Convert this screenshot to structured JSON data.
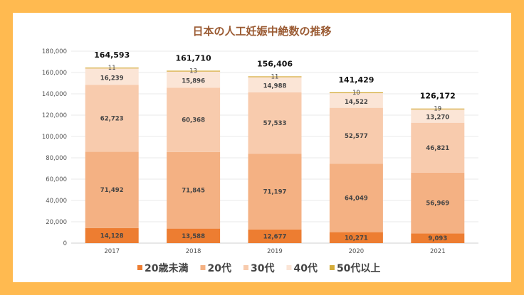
{
  "chart_data": {
    "type": "bar",
    "stacked": true,
    "title": "日本の人工妊娠中絶数の推移",
    "xlabel": "",
    "ylabel": "",
    "categories": [
      "2017",
      "2018",
      "2019",
      "2020",
      "2021"
    ],
    "ylim": [
      0,
      180000
    ],
    "yticks": [
      0,
      20000,
      40000,
      60000,
      80000,
      100000,
      120000,
      140000,
      160000,
      180000
    ],
    "ytick_labels": [
      "0",
      "20,000",
      "40,000",
      "60,000",
      "80,000",
      "100,000",
      "120,000",
      "140,000",
      "160,000",
      "180,000"
    ],
    "grid": true,
    "legend_position": "bottom",
    "series": [
      {
        "name": "20歳未満",
        "color": "#ED7D31",
        "values": [
          14128,
          13588,
          12677,
          10271,
          9093
        ],
        "labels": [
          "14,128",
          "13,588",
          "12,677",
          "10,271",
          "9,093"
        ]
      },
      {
        "name": "20代",
        "color": "#F4B183",
        "values": [
          71492,
          71845,
          71197,
          64049,
          56969
        ],
        "labels": [
          "71,492",
          "71,845",
          "71,197",
          "64,049",
          "56,969"
        ]
      },
      {
        "name": "30代",
        "color": "#F8CBAD",
        "values": [
          62723,
          60368,
          57533,
          52577,
          46821
        ],
        "labels": [
          "62,723",
          "60,368",
          "57,533",
          "52,577",
          "46,821"
        ]
      },
      {
        "name": "40代",
        "color": "#FBE5D6",
        "values": [
          16239,
          15896,
          14988,
          14522,
          13270
        ],
        "labels": [
          "16,239",
          "15,896",
          "14,988",
          "14,522",
          "13,270"
        ]
      },
      {
        "name": "50代以上",
        "color": "#D4AC3A",
        "values": [
          11,
          13,
          11,
          10,
          19
        ],
        "labels": [
          "11",
          "13",
          "11",
          "10",
          "19"
        ]
      }
    ],
    "totals": [
      164593,
      161710,
      156406,
      141429,
      126172
    ],
    "total_labels": [
      "164,593",
      "161,710",
      "156,406",
      "141,429",
      "126,172"
    ]
  }
}
